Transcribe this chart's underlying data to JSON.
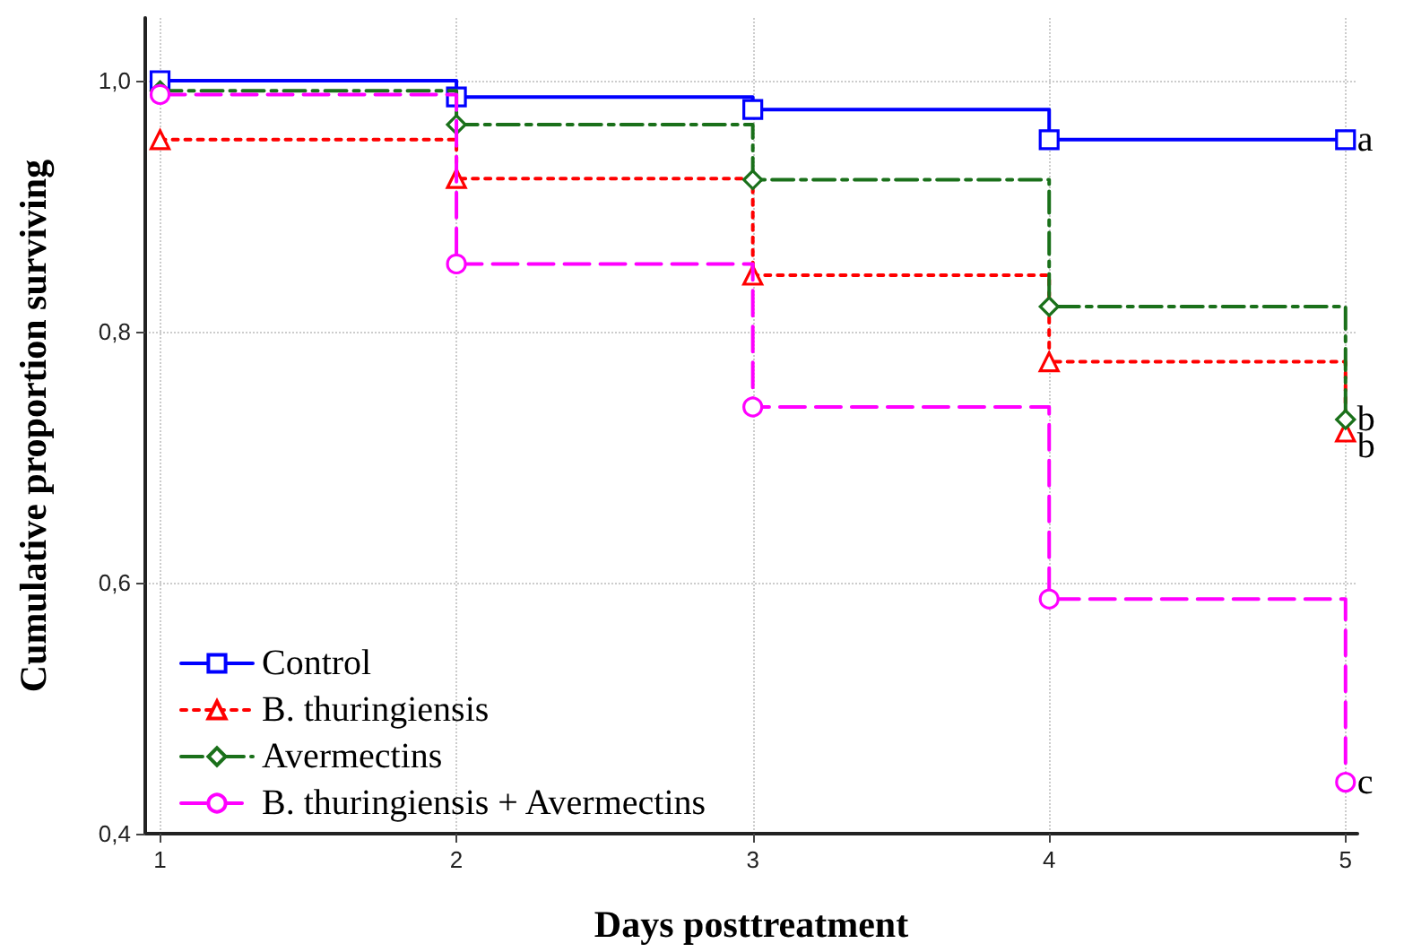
{
  "chart_data": {
    "type": "step",
    "xlabel": "Days posttreatment",
    "ylabel": "Cumulative proportion surviving",
    "x": [
      1,
      2,
      3,
      4,
      5
    ],
    "series": [
      {
        "name": "Control",
        "color": "#0000ff",
        "marker": "square",
        "line_style": "solid",
        "values": [
          1.0,
          0.987,
          0.977,
          0.953,
          0.953
        ]
      },
      {
        "name": "B. thuringiensis",
        "color": "#ff0000",
        "marker": "triangle",
        "line_style": "dotted",
        "values": [
          0.953,
          0.922,
          0.845,
          0.776,
          0.72
        ]
      },
      {
        "name": "Avermectins",
        "color": "#1a701a",
        "marker": "diamond",
        "line_style": "dashed",
        "values": [
          0.992,
          0.965,
          0.921,
          0.82,
          0.73
        ]
      },
      {
        "name": "B. thuringiensis + Avermectins",
        "color": "#ff00ff",
        "marker": "circle",
        "line_style": "dashed",
        "values": [
          0.989,
          0.854,
          0.74,
          0.587,
          0.441
        ]
      }
    ],
    "xlim": [
      0.95,
      5.04
    ],
    "xticks": [
      1,
      2,
      3,
      4,
      5
    ],
    "ylim": [
      0.4,
      1.05
    ],
    "yticks": [
      {
        "value": 0.4,
        "label": "0,4"
      },
      {
        "value": 0.6,
        "label": "0,6"
      },
      {
        "value": 0.8,
        "label": "0,8"
      },
      {
        "value": 1.0,
        "label": "1,0"
      }
    ],
    "grid": true,
    "legend": "bottom left",
    "annotations": [
      "a",
      "b",
      "b",
      "c"
    ]
  }
}
